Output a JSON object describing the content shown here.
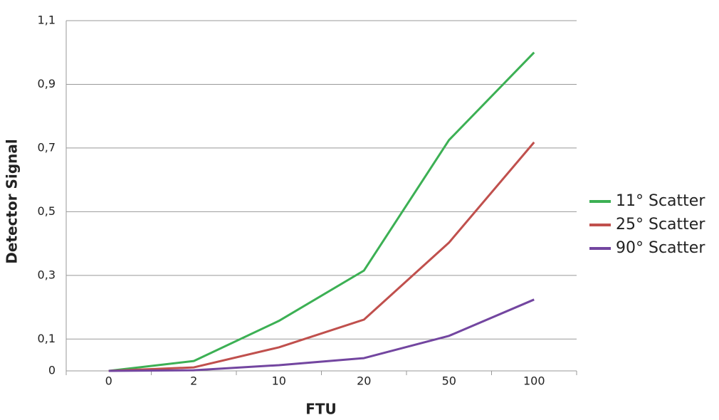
{
  "chart_data": {
    "type": "line",
    "x_label": "FTU",
    "y_label": "Detector Signal",
    "categories": [
      "0",
      "2",
      "10",
      "20",
      "50",
      "100"
    ],
    "series": [
      {
        "name": "11° Scatter",
        "color": "#3cb054",
        "values": [
          0,
          0.031,
          0.157,
          0.315,
          0.725,
          1.0
        ]
      },
      {
        "name": "25° Scatter",
        "color": "#c0504d",
        "values": [
          0,
          0.011,
          0.074,
          0.161,
          0.403,
          0.718
        ]
      },
      {
        "name": "90° Scatter",
        "color": "#7346a0",
        "values": [
          0,
          0.002,
          0.018,
          0.04,
          0.11,
          0.224
        ]
      }
    ],
    "ylim": [
      0,
      1.1
    ],
    "yticks": [
      0,
      {
        "value": 0.1,
        "label": "0,1"
      },
      {
        "value": 0.3,
        "label": "0,3"
      },
      {
        "value": 0.5,
        "label": "0,5"
      },
      {
        "value": 0.7,
        "label": "0,7"
      },
      {
        "value": 0.9,
        "label": "0,9"
      },
      {
        "value": 1.1,
        "label": "1,1"
      }
    ],
    "grid": true,
    "legend": "right"
  }
}
